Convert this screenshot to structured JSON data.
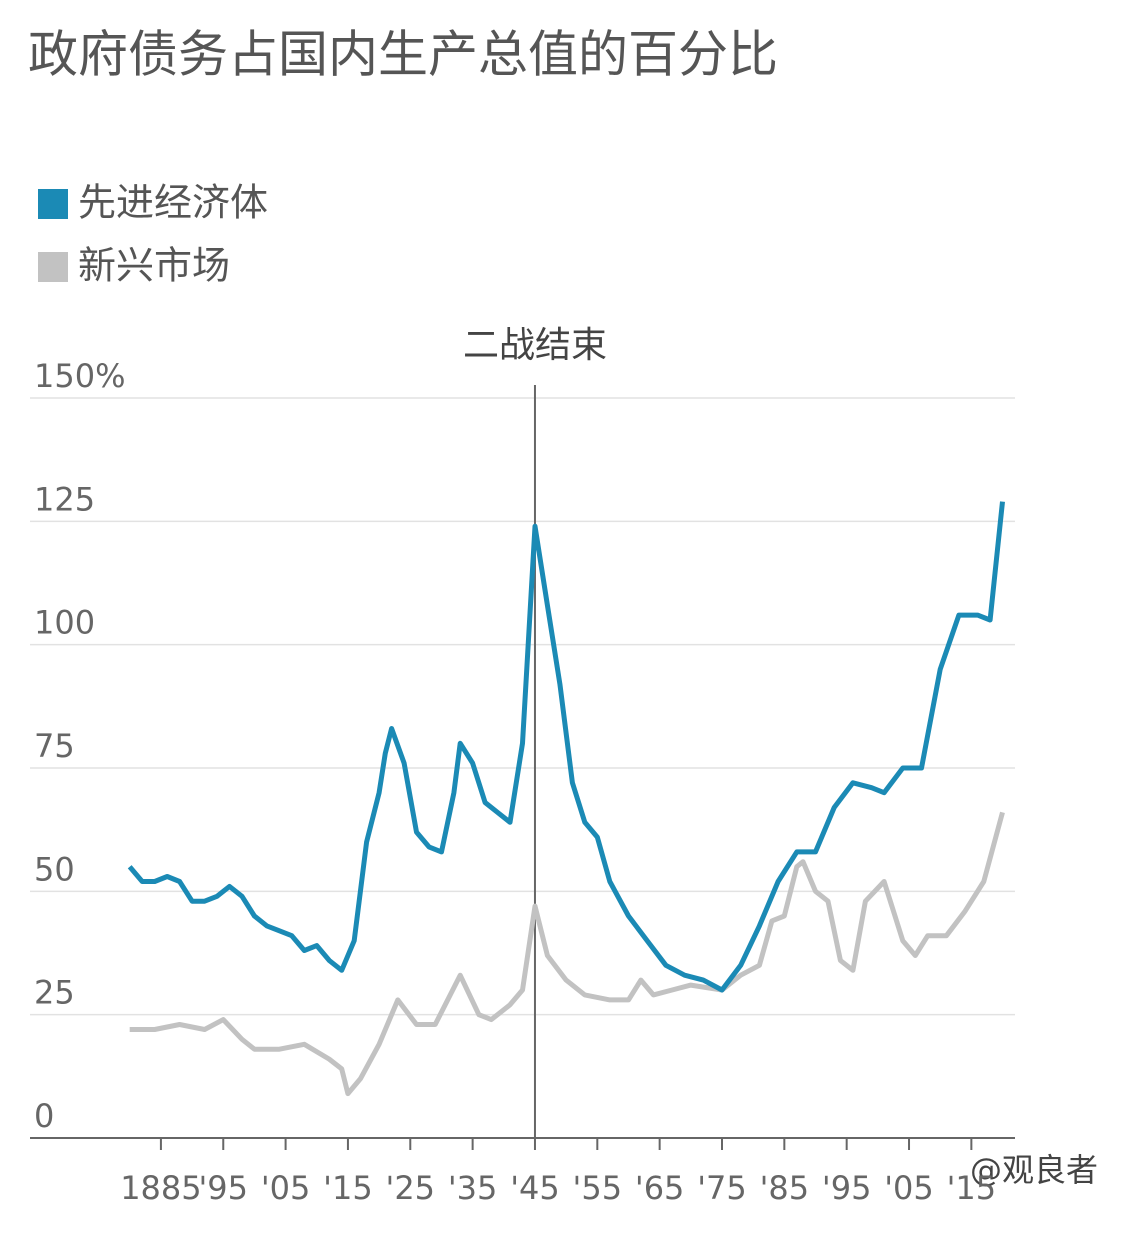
{
  "chart_data": {
    "type": "line",
    "title": "政府债务占国内生产总值的百分比",
    "annotation": {
      "text": "二战结束",
      "x": 1945
    },
    "watermark": "@观良者",
    "xlim": [
      1864,
      2022
    ],
    "xticks": [
      {
        "value": 1885,
        "label": "1885"
      },
      {
        "value": 1895,
        "label": "'95"
      },
      {
        "value": 1905,
        "label": "'05"
      },
      {
        "value": 1915,
        "label": "'15"
      },
      {
        "value": 1925,
        "label": "'25"
      },
      {
        "value": 1935,
        "label": "'35"
      },
      {
        "value": 1945,
        "label": "'45"
      },
      {
        "value": 1955,
        "label": "'55"
      },
      {
        "value": 1965,
        "label": "'65"
      },
      {
        "value": 1975,
        "label": "'75"
      },
      {
        "value": 1985,
        "label": "'85"
      },
      {
        "value": 1995,
        "label": "'95"
      },
      {
        "value": 2005,
        "label": "'05"
      },
      {
        "value": 2015,
        "label": "'15"
      }
    ],
    "ylim": [
      0,
      150
    ],
    "yticks": [
      0,
      25,
      50,
      75,
      100,
      125,
      {
        "value": 150,
        "label": "150%"
      }
    ],
    "grid": true,
    "series": [
      {
        "name": "先进经济体",
        "color": "#1b8ab5",
        "x": [
          1880,
          1882,
          1884,
          1886,
          1888,
          1890,
          1892,
          1894,
          1896,
          1898,
          1900,
          1902,
          1904,
          1906,
          1908,
          1910,
          1912,
          1914,
          1916,
          1918,
          1920,
          1921,
          1922,
          1924,
          1926,
          1928,
          1930,
          1932,
          1933,
          1935,
          1937,
          1939,
          1941,
          1943,
          1945,
          1947,
          1949,
          1951,
          1953,
          1955,
          1957,
          1960,
          1963,
          1966,
          1969,
          1972,
          1975,
          1978,
          1981,
          1984,
          1987,
          1990,
          1993,
          1996,
          1999,
          2001,
          2004,
          2007,
          2010,
          2013,
          2016,
          2018,
          2020
        ],
        "values": [
          55,
          52,
          52,
          53,
          52,
          48,
          48,
          49,
          51,
          49,
          45,
          43,
          42,
          41,
          38,
          39,
          36,
          34,
          40,
          60,
          70,
          78,
          83,
          76,
          62,
          59,
          58,
          70,
          80,
          76,
          68,
          66,
          64,
          80,
          124,
          108,
          92,
          72,
          64,
          61,
          52,
          45,
          40,
          35,
          33,
          32,
          30,
          35,
          43,
          52,
          58,
          58,
          67,
          72,
          71,
          70,
          75,
          75,
          95,
          106,
          106,
          105,
          129
        ]
      },
      {
        "name": "新兴市场",
        "color": "#c2c2c2",
        "x": [
          1880,
          1884,
          1888,
          1892,
          1895,
          1898,
          1900,
          1904,
          1908,
          1912,
          1914,
          1915,
          1917,
          1920,
          1923,
          1926,
          1929,
          1931,
          1933,
          1936,
          1938,
          1941,
          1943,
          1945,
          1947,
          1950,
          1953,
          1957,
          1960,
          1962,
          1964,
          1967,
          1970,
          1975,
          1978,
          1981,
          1983,
          1985,
          1987,
          1988,
          1990,
          1992,
          1994,
          1996,
          1998,
          2001,
          2004,
          2006,
          2008,
          2011,
          2014,
          2017,
          2020
        ],
        "values": [
          22,
          22,
          23,
          22,
          24,
          20,
          18,
          18,
          19,
          16,
          14,
          9,
          12,
          19,
          28,
          23,
          23,
          28,
          33,
          25,
          24,
          27,
          30,
          47,
          37,
          32,
          29,
          28,
          28,
          32,
          29,
          30,
          31,
          30,
          33,
          35,
          44,
          45,
          55,
          56,
          50,
          48,
          36,
          34,
          48,
          52,
          40,
          37,
          41,
          41,
          46,
          52,
          66
        ]
      }
    ]
  }
}
